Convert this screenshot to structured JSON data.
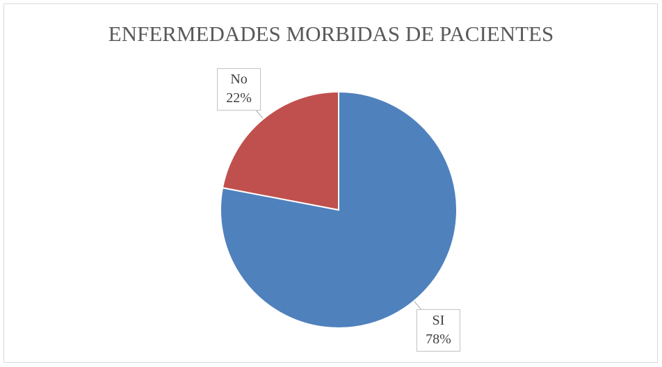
{
  "chart_data": {
    "type": "pie",
    "title": "ENFERMEDADES MORBIDAS DE PACIENTES",
    "categories": [
      "SI",
      "No"
    ],
    "values": [
      78,
      22
    ],
    "value_labels": [
      "78%",
      "22%"
    ],
    "colors": [
      "#4f81bd",
      "#c0504d"
    ]
  }
}
